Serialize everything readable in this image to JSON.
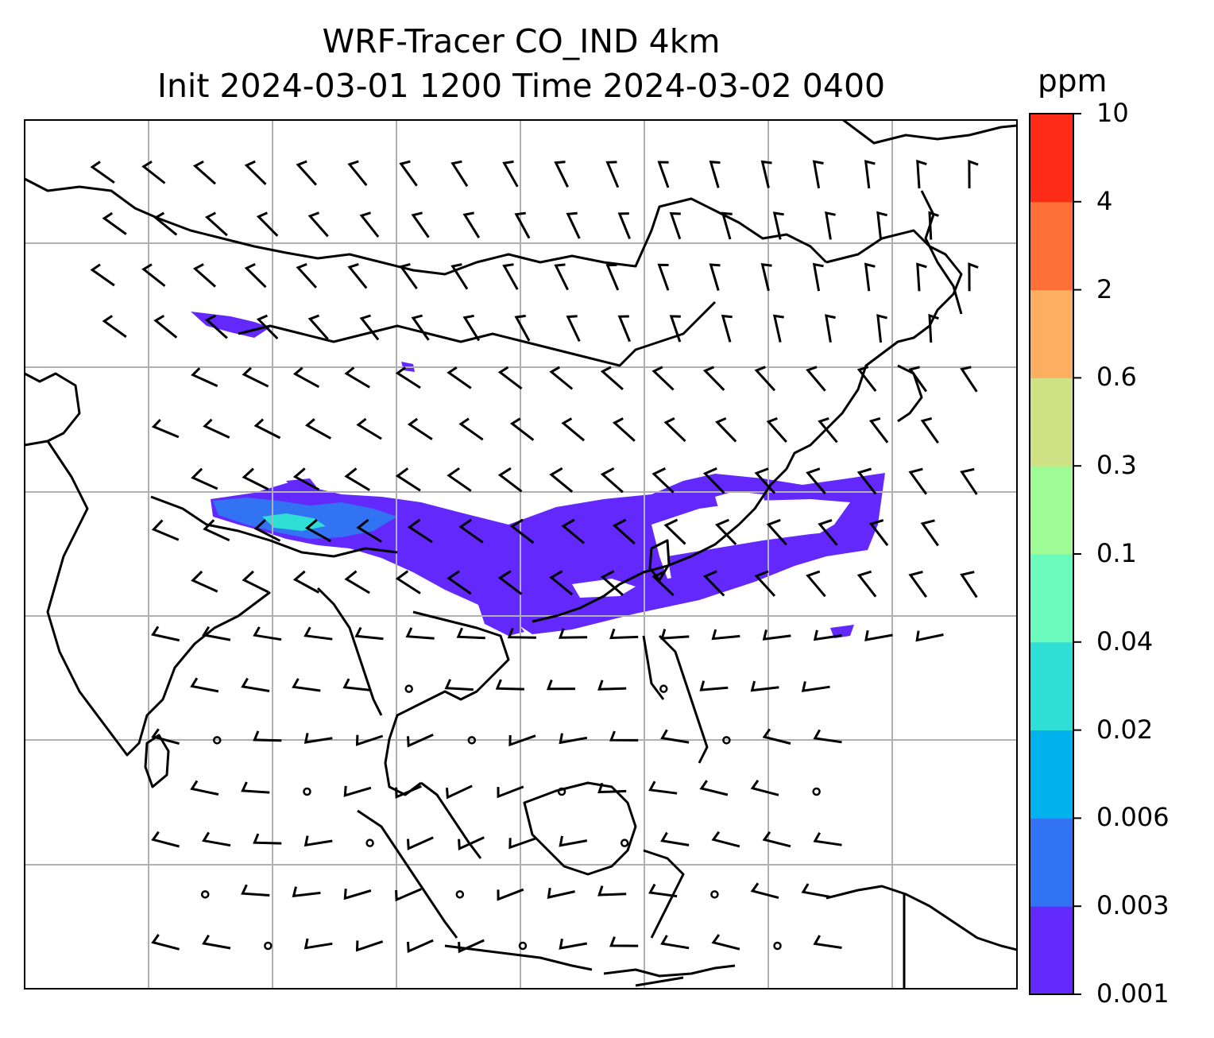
{
  "title": {
    "line1": "WRF-Tracer CO_IND 4km",
    "line2": "Init 2024-03-01 1200 Time 2024-03-02 0400"
  },
  "colorbar": {
    "unit": "ppm",
    "ticks": [
      "0.001",
      "0.003",
      "0.006",
      "0.02",
      "0.04",
      "0.1",
      "0.3",
      "0.6",
      "2",
      "4",
      "10"
    ],
    "colors": [
      "#6328fc",
      "#3173f2",
      "#02b2ed",
      "#2fded4",
      "#6bfcbd",
      "#9ffb96",
      "#cfe285",
      "#fdaf61",
      "#fe7036",
      "#fe2b17"
    ]
  },
  "map": {
    "gridlines": true,
    "plume_color": "#6328fc",
    "plume_core_colors": [
      "#3173f2",
      "#2fded4"
    ]
  }
}
